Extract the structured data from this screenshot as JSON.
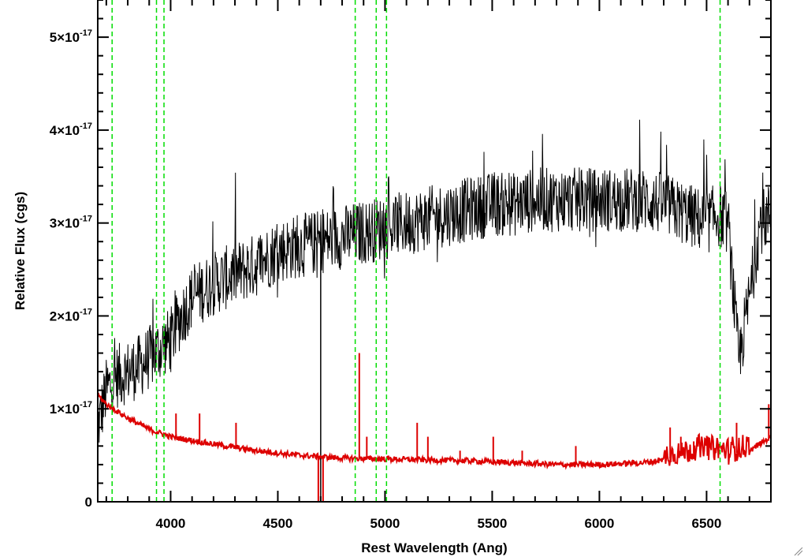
{
  "chart_data": {
    "type": "line",
    "title": "",
    "xlabel": "Rest Wavelength (Ang)",
    "ylabel": "Relative Flux (cgs)",
    "xlim": [
      3660,
      6800
    ],
    "ylim": [
      0,
      5.4
    ],
    "y_scale_note": "×10^-17",
    "x_ticks": [
      4000,
      4500,
      5000,
      5500,
      6000,
      6500
    ],
    "x_tick_labels": [
      "4000",
      "4500",
      "5000",
      "5500",
      "6000",
      "6500"
    ],
    "y_ticks": [
      0,
      1,
      2,
      3,
      4,
      5
    ],
    "y_tick_labels": [
      {
        "mantissa": "0",
        "exp": ""
      },
      {
        "mantissa": "1×10",
        "exp": "-17"
      },
      {
        "mantissa": "2×10",
        "exp": "-17"
      },
      {
        "mantissa": "3×10",
        "exp": "-17"
      },
      {
        "mantissa": "4×10",
        "exp": "-17"
      },
      {
        "mantissa": "5×10",
        "exp": "-17"
      }
    ],
    "reference_lines": {
      "color": "#00dd00",
      "style": "dashed",
      "x": [
        3727,
        3934,
        3969,
        4861,
        4959,
        5007,
        6563
      ]
    },
    "series": [
      {
        "color": "#000000",
        "description_points_x": [
          3660,
          3700,
          3750,
          3800,
          3850,
          3900,
          3950,
          4000,
          4050,
          4100,
          4200,
          4300,
          4400,
          4500,
          4600,
          4700,
          4800,
          4900,
          5000,
          5100,
          5200,
          5300,
          5400,
          5500,
          5600,
          5700,
          5800,
          5900,
          6000,
          6100,
          6200,
          6300,
          6400,
          6500,
          6550,
          6600,
          6650,
          6700,
          6750,
          6800
        ],
        "description_points_y": [
          0.8,
          1.2,
          1.35,
          1.4,
          1.45,
          1.55,
          1.65,
          1.75,
          2.0,
          2.2,
          2.35,
          2.45,
          2.55,
          2.7,
          2.75,
          2.8,
          2.85,
          2.9,
          2.95,
          3.0,
          3.05,
          3.1,
          3.15,
          3.2,
          3.2,
          3.25,
          3.25,
          3.25,
          3.25,
          3.25,
          3.25,
          3.2,
          3.1,
          3.0,
          3.1,
          3.0,
          1.5,
          2.2,
          3.0,
          3.1
        ],
        "noise_amplitude": 0.35
      },
      {
        "color": "#dd0000",
        "description_points_x": [
          3660,
          3700,
          3800,
          3900,
          4000,
          4200,
          4400,
          4600,
          4800,
          5000,
          5200,
          5400,
          5600,
          5800,
          6000,
          6200,
          6300,
          6400,
          6500,
          6600,
          6700,
          6800
        ],
        "description_points_y": [
          1.15,
          1.05,
          0.9,
          0.78,
          0.7,
          0.62,
          0.55,
          0.5,
          0.47,
          0.46,
          0.45,
          0.44,
          0.42,
          0.4,
          0.4,
          0.42,
          0.45,
          0.5,
          0.55,
          0.5,
          0.55,
          0.7
        ],
        "spikes": [
          {
            "x": 4025,
            "y": 0.95
          },
          {
            "x": 4135,
            "y": 0.95
          },
          {
            "x": 4305,
            "y": 0.85
          },
          {
            "x": 4880,
            "y": 1.6
          },
          {
            "x": 4915,
            "y": 0.7
          },
          {
            "x": 5150,
            "y": 0.85
          },
          {
            "x": 5200,
            "y": 0.7
          },
          {
            "x": 5350,
            "y": 0.55
          },
          {
            "x": 5505,
            "y": 0.7
          },
          {
            "x": 5640,
            "y": 0.55
          },
          {
            "x": 5890,
            "y": 0.6
          },
          {
            "x": 6330,
            "y": 0.8
          },
          {
            "x": 6380,
            "y": 0.7
          },
          {
            "x": 6440,
            "y": 0.65
          },
          {
            "x": 6640,
            "y": 0.85
          },
          {
            "x": 6790,
            "y": 1.05
          }
        ],
        "dip": {
          "x": 4700,
          "y": 0
        }
      }
    ]
  }
}
